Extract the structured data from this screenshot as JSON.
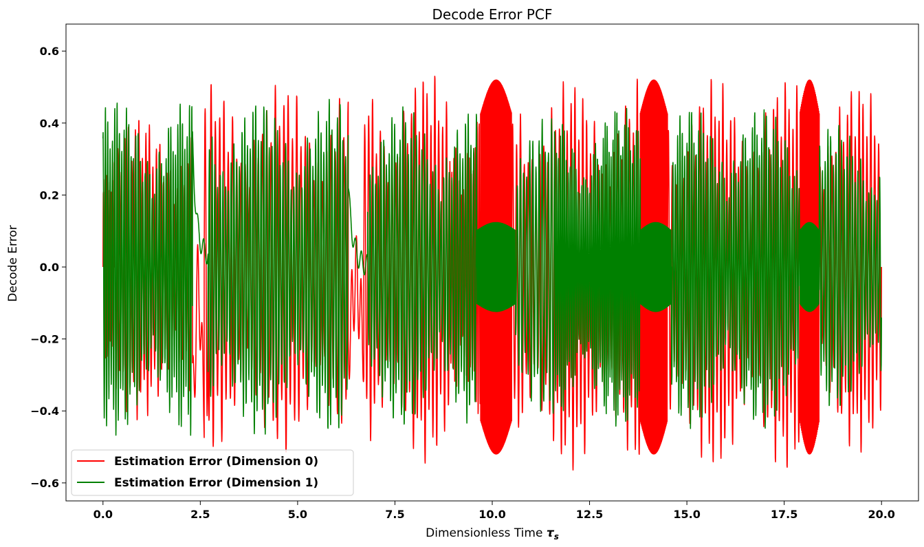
{
  "chart_data": {
    "type": "line",
    "title": "Decode Error PCF",
    "xlabel_main": "Dimensionless Time ",
    "xlabel_symbol": "τ",
    "xlabel_subscript": "s",
    "ylabel": "Decode Error",
    "xlim": [
      -0.95,
      20.95
    ],
    "ylim": [
      -0.65,
      0.675
    ],
    "xticks": [
      0.0,
      2.5,
      5.0,
      7.5,
      10.0,
      12.5,
      15.0,
      17.5,
      20.0
    ],
    "xtick_labels": [
      "0.0",
      "2.5",
      "5.0",
      "7.5",
      "10.0",
      "12.5",
      "15.0",
      "17.5",
      "20.0"
    ],
    "yticks": [
      -0.6,
      -0.4,
      -0.2,
      0.0,
      0.2,
      0.4,
      0.6
    ],
    "ytick_labels": [
      "−0.6",
      "−0.4",
      "−0.2",
      "0.0",
      "0.2",
      "0.4",
      "0.6"
    ],
    "grid": false,
    "legend_position": "lower-left",
    "series": [
      {
        "name": "Estimation Error (Dimension 0)",
        "color": "#ff0000",
        "x_range": [
          0.0,
          20.0
        ],
        "segments": [
          {
            "t": [
              0.0,
              0.3
            ],
            "mode": "osc",
            "amp": 0.44,
            "offset": 0.0,
            "period": 0.04
          },
          {
            "t": [
              0.3,
              2.3
            ],
            "mode": "osc",
            "amp": 0.43,
            "offset": 0.0,
            "period": 0.09
          },
          {
            "t": [
              2.3,
              2.6
            ],
            "mode": "dip",
            "low": -0.37,
            "high": 0.17
          },
          {
            "t": [
              2.6,
              2.7
            ],
            "mode": "osc",
            "amp": 0.59,
            "offset": 0.0,
            "period": 0.1
          },
          {
            "t": [
              2.7,
              6.3
            ],
            "mode": "osc",
            "amp": 0.52,
            "offset": 0.0,
            "period": 0.11
          },
          {
            "t": [
              6.3,
              6.7
            ],
            "mode": "dip",
            "low": -0.2,
            "high": 0.08
          },
          {
            "t": [
              6.7,
              8.9
            ],
            "mode": "osc",
            "amp": 0.55,
            "offset": 0.0,
            "period": 0.1
          },
          {
            "t": [
              8.9,
              9.7
            ],
            "mode": "osc",
            "amp": 0.5,
            "offset": 0.0,
            "period": 0.05
          },
          {
            "t": [
              9.7,
              10.5
            ],
            "mode": "burst",
            "amp": 0.6,
            "offset": 0.0,
            "period": 0.012
          },
          {
            "t": [
              10.5,
              13.8
            ],
            "mode": "osc",
            "amp": 0.55,
            "offset": -0.02,
            "period": 0.1
          },
          {
            "t": [
              13.8,
              14.5
            ],
            "mode": "burst",
            "amp": 0.6,
            "offset": 0.0,
            "period": 0.012
          },
          {
            "t": [
              14.5,
              17.9
            ],
            "mode": "osc",
            "amp": 0.55,
            "offset": -0.02,
            "period": 0.1
          },
          {
            "t": [
              17.9,
              18.4
            ],
            "mode": "burst",
            "amp": 0.6,
            "offset": 0.0,
            "period": 0.012
          },
          {
            "t": [
              18.4,
              20.0
            ],
            "mode": "osc",
            "amp": 0.52,
            "offset": 0.0,
            "period": 0.1
          }
        ]
      },
      {
        "name": "Estimation Error (Dimension 1)",
        "color": "#008000",
        "x_range": [
          0.0,
          20.0
        ],
        "segments": [
          {
            "t": [
              0.0,
              2.3
            ],
            "mode": "osc",
            "amp": 0.47,
            "offset": 0.0,
            "period": 0.06
          },
          {
            "t": [
              2.3,
              2.7
            ],
            "mode": "decay",
            "start": 0.35,
            "end": 0.03
          },
          {
            "t": [
              2.7,
              6.3
            ],
            "mode": "osc",
            "amp": 0.47,
            "offset": 0.0,
            "period": 0.07
          },
          {
            "t": [
              6.3,
              6.8
            ],
            "mode": "decay",
            "start": 0.22,
            "end": 0.0
          },
          {
            "t": [
              6.8,
              9.6
            ],
            "mode": "osc",
            "amp": 0.45,
            "offset": 0.0,
            "period": 0.07
          },
          {
            "t": [
              9.6,
              10.6
            ],
            "mode": "burst",
            "amp": 0.13,
            "offset": 0.0,
            "period": 0.01
          },
          {
            "t": [
              10.6,
              11.6
            ],
            "mode": "osc",
            "amp": 0.42,
            "offset": 0.0,
            "period": 0.08
          },
          {
            "t": [
              11.6,
              13.8
            ],
            "mode": "osc",
            "amp": 0.45,
            "offset": 0.0,
            "period": 0.05
          },
          {
            "t": [
              13.8,
              14.6
            ],
            "mode": "burst",
            "amp": 0.13,
            "offset": 0.0,
            "period": 0.01
          },
          {
            "t": [
              14.6,
              17.9
            ],
            "mode": "osc",
            "amp": 0.45,
            "offset": 0.0,
            "period": 0.06
          },
          {
            "t": [
              17.9,
              18.4
            ],
            "mode": "burst",
            "amp": 0.13,
            "offset": 0.0,
            "period": 0.01
          },
          {
            "t": [
              18.4,
              20.0
            ],
            "mode": "osc",
            "amp": 0.4,
            "offset": 0.0,
            "period": 0.07
          }
        ]
      }
    ]
  }
}
